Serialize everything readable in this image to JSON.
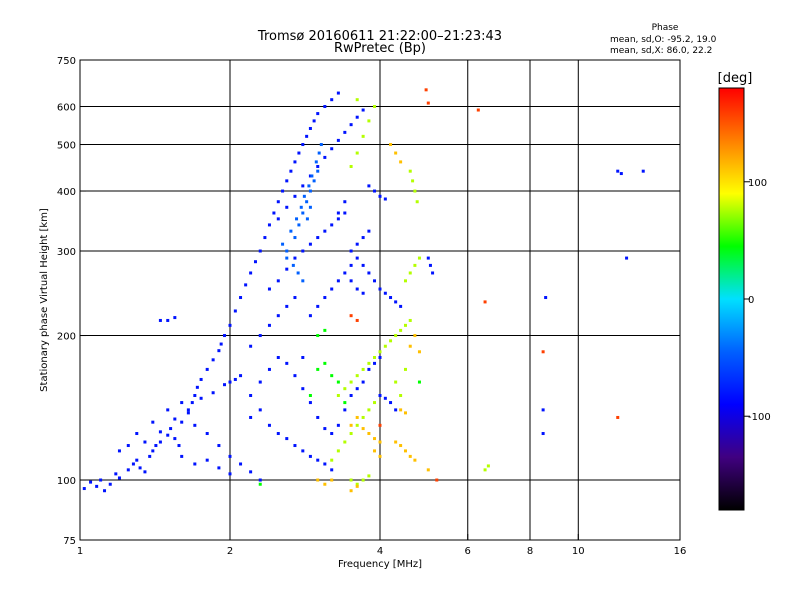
{
  "chart_data": {
    "type": "scatter",
    "title": "Tromsø 20160611 21:22:00–21:23:43",
    "subtitle": "RwPretec (Bp)",
    "xlabel": "Frequency [MHz]",
    "ylabel": "Stationary phase Virtual Height [km]",
    "x_scale": "log",
    "y_scale": "log",
    "xlim": [
      1,
      16
    ],
    "ylim": [
      75,
      750
    ],
    "x_ticks": [
      1,
      2,
      4,
      6,
      8,
      10,
      16
    ],
    "y_ticks": [
      75,
      100,
      200,
      300,
      400,
      500,
      600,
      750
    ],
    "x_gridlines": [
      2,
      4,
      6,
      8,
      10
    ],
    "y_gridlines": [
      100,
      200,
      300,
      400,
      500,
      600
    ],
    "stats": {
      "heading": "Phase",
      "line_o": "mean, sd,O: -95.2, 19.0",
      "line_x": "mean, sd,X:  86.0, 22.2"
    },
    "colorbar": {
      "label": "[deg]",
      "range": [
        -180,
        180
      ],
      "ticks": [
        100,
        0,
        -100
      ],
      "colors": [
        "#ff0000",
        "#ff8000",
        "#ffff00",
        "#00ff00",
        "#00e0ff",
        "#0060ff",
        "#0000ff",
        "#400080",
        "#000000"
      ]
    },
    "series": [
      {
        "phase": -100,
        "points": [
          [
            1.02,
            96
          ],
          [
            1.05,
            99
          ],
          [
            1.08,
            97
          ],
          [
            1.1,
            100
          ],
          [
            1.12,
            95
          ],
          [
            1.15,
            98
          ],
          [
            1.18,
            103
          ],
          [
            1.2,
            101
          ],
          [
            1.25,
            105
          ],
          [
            1.28,
            108
          ],
          [
            1.3,
            110
          ],
          [
            1.32,
            106
          ],
          [
            1.35,
            104
          ],
          [
            1.38,
            112
          ],
          [
            1.4,
            115
          ],
          [
            1.42,
            118
          ],
          [
            1.45,
            120
          ],
          [
            1.5,
            124
          ],
          [
            1.52,
            128
          ],
          [
            1.55,
            122
          ],
          [
            1.58,
            118
          ],
          [
            1.6,
            132
          ],
          [
            1.65,
            138
          ],
          [
            1.68,
            145
          ],
          [
            1.7,
            150
          ],
          [
            1.72,
            156
          ],
          [
            1.75,
            162
          ],
          [
            1.8,
            170
          ],
          [
            1.85,
            178
          ],
          [
            1.9,
            186
          ],
          [
            1.92,
            192
          ],
          [
            1.95,
            200
          ],
          [
            2.0,
            210
          ],
          [
            2.05,
            225
          ],
          [
            2.1,
            240
          ],
          [
            2.15,
            255
          ],
          [
            2.2,
            270
          ],
          [
            2.25,
            285
          ],
          [
            2.3,
            300
          ],
          [
            2.35,
            320
          ],
          [
            2.4,
            340
          ],
          [
            2.45,
            360
          ],
          [
            2.5,
            380
          ],
          [
            2.55,
            400
          ],
          [
            2.6,
            420
          ],
          [
            2.65,
            440
          ],
          [
            2.7,
            460
          ],
          [
            2.75,
            480
          ],
          [
            2.8,
            500
          ],
          [
            2.85,
            520
          ],
          [
            2.9,
            540
          ],
          [
            2.95,
            560
          ],
          [
            3.0,
            580
          ],
          [
            3.1,
            600
          ],
          [
            3.2,
            620
          ],
          [
            3.3,
            640
          ],
          [
            1.3,
            125
          ],
          [
            1.4,
            132
          ],
          [
            1.5,
            140
          ],
          [
            1.6,
            145
          ],
          [
            1.7,
            130
          ],
          [
            1.8,
            125
          ],
          [
            1.9,
            118
          ],
          [
            2.0,
            112
          ],
          [
            2.1,
            108
          ],
          [
            2.2,
            104
          ],
          [
            2.3,
            100
          ],
          [
            1.6,
            112
          ],
          [
            1.7,
            108
          ],
          [
            1.8,
            110
          ],
          [
            1.9,
            106
          ],
          [
            2.0,
            103
          ],
          [
            2.2,
            150
          ],
          [
            2.3,
            160
          ],
          [
            2.4,
            170
          ],
          [
            2.5,
            180
          ],
          [
            2.6,
            175
          ],
          [
            2.7,
            165
          ],
          [
            2.8,
            155
          ],
          [
            2.9,
            145
          ],
          [
            3.0,
            135
          ],
          [
            3.1,
            128
          ],
          [
            3.2,
            125
          ],
          [
            3.3,
            130
          ],
          [
            3.4,
            140
          ],
          [
            3.5,
            150
          ],
          [
            3.6,
            155
          ],
          [
            3.7,
            160
          ],
          [
            3.8,
            170
          ],
          [
            3.9,
            175
          ],
          [
            4.0,
            180
          ],
          [
            2.4,
            250
          ],
          [
            2.5,
            260
          ],
          [
            2.6,
            275
          ],
          [
            2.7,
            290
          ],
          [
            2.8,
            300
          ],
          [
            2.9,
            310
          ],
          [
            3.0,
            320
          ],
          [
            3.1,
            330
          ],
          [
            3.2,
            340
          ],
          [
            3.3,
            350
          ],
          [
            3.4,
            360
          ],
          [
            3.5,
            300
          ],
          [
            3.6,
            290
          ],
          [
            3.7,
            280
          ],
          [
            3.8,
            270
          ],
          [
            3.9,
            260
          ],
          [
            4.0,
            250
          ],
          [
            4.1,
            245
          ],
          [
            4.2,
            240
          ],
          [
            4.3,
            235
          ],
          [
            4.4,
            230
          ],
          [
            2.5,
            350
          ],
          [
            2.6,
            370
          ],
          [
            2.7,
            390
          ],
          [
            2.8,
            410
          ],
          [
            2.9,
            430
          ],
          [
            3.0,
            450
          ],
          [
            3.1,
            470
          ],
          [
            3.2,
            490
          ],
          [
            3.3,
            510
          ],
          [
            3.4,
            530
          ],
          [
            3.5,
            550
          ],
          [
            3.6,
            570
          ],
          [
            3.7,
            590
          ],
          [
            3.8,
            410
          ],
          [
            3.9,
            400
          ],
          [
            4.0,
            390
          ],
          [
            4.1,
            385
          ],
          [
            2.2,
            190
          ],
          [
            2.3,
            200
          ],
          [
            2.4,
            210
          ],
          [
            2.5,
            220
          ],
          [
            2.6,
            230
          ],
          [
            2.7,
            240
          ],
          [
            2.8,
            180
          ],
          [
            1.45,
            215
          ],
          [
            1.5,
            215
          ],
          [
            1.55,
            218
          ],
          [
            3.3,
            360
          ],
          [
            3.4,
            380
          ],
          [
            3.5,
            260
          ],
          [
            3.6,
            250
          ],
          [
            3.7,
            245
          ],
          [
            4.0,
            150
          ],
          [
            4.1,
            148
          ],
          [
            4.2,
            145
          ],
          [
            4.3,
            140
          ],
          [
            5.0,
            290
          ],
          [
            5.05,
            280
          ],
          [
            5.1,
            270
          ],
          [
            8.5,
            140
          ],
          [
            8.5,
            125
          ],
          [
            8.6,
            240
          ],
          [
            12.0,
            440
          ],
          [
            12.2,
            435
          ],
          [
            13.5,
            440
          ],
          [
            12.5,
            290
          ],
          [
            2.9,
            220
          ],
          [
            3.0,
            230
          ],
          [
            3.1,
            240
          ],
          [
            3.2,
            250
          ],
          [
            3.3,
            260
          ],
          [
            3.4,
            270
          ],
          [
            3.5,
            280
          ],
          [
            3.6,
            310
          ],
          [
            3.7,
            320
          ],
          [
            3.8,
            330
          ],
          [
            2.0,
            160
          ],
          [
            2.1,
            165
          ],
          [
            2.2,
            135
          ],
          [
            2.3,
            140
          ],
          [
            2.4,
            130
          ],
          [
            2.5,
            125
          ],
          [
            2.6,
            122
          ],
          [
            2.7,
            118
          ],
          [
            2.8,
            115
          ],
          [
            2.9,
            112
          ],
          [
            3.0,
            110
          ],
          [
            3.1,
            108
          ],
          [
            3.2,
            105
          ],
          [
            1.2,
            115
          ],
          [
            1.25,
            118
          ],
          [
            1.35,
            120
          ],
          [
            1.45,
            126
          ],
          [
            1.55,
            134
          ],
          [
            1.65,
            140
          ],
          [
            1.75,
            148
          ],
          [
            1.85,
            152
          ],
          [
            1.95,
            158
          ],
          [
            2.05,
            162
          ]
        ]
      },
      {
        "phase": -60,
        "points": [
          [
            2.6,
            300
          ],
          [
            2.7,
            320
          ],
          [
            2.75,
            340
          ],
          [
            2.8,
            360
          ],
          [
            2.85,
            380
          ],
          [
            2.9,
            400
          ],
          [
            2.95,
            420
          ],
          [
            3.0,
            440
          ],
          [
            2.65,
            330
          ],
          [
            2.72,
            350
          ],
          [
            2.78,
            370
          ],
          [
            2.82,
            390
          ],
          [
            2.88,
            410
          ],
          [
            2.92,
            430
          ],
          [
            2.98,
            460
          ],
          [
            3.02,
            480
          ],
          [
            3.05,
            500
          ],
          [
            2.55,
            310
          ],
          [
            2.6,
            290
          ],
          [
            2.68,
            280
          ],
          [
            2.74,
            270
          ],
          [
            2.8,
            260
          ],
          [
            2.86,
            350
          ],
          [
            2.9,
            370
          ]
        ]
      },
      {
        "phase": 60,
        "points": [
          [
            3.2,
            110
          ],
          [
            3.3,
            115
          ],
          [
            3.4,
            120
          ],
          [
            3.5,
            125
          ],
          [
            3.6,
            130
          ],
          [
            3.7,
            135
          ],
          [
            3.8,
            140
          ],
          [
            3.9,
            145
          ],
          [
            3.3,
            150
          ],
          [
            3.4,
            155
          ],
          [
            3.5,
            160
          ],
          [
            3.6,
            165
          ],
          [
            3.7,
            170
          ],
          [
            3.8,
            175
          ],
          [
            3.9,
            180
          ],
          [
            4.0,
            185
          ],
          [
            4.1,
            190
          ],
          [
            4.2,
            195
          ],
          [
            4.3,
            200
          ],
          [
            4.4,
            205
          ],
          [
            4.5,
            210
          ],
          [
            4.6,
            215
          ],
          [
            3.5,
            100
          ],
          [
            3.6,
            98
          ],
          [
            3.7,
            100
          ],
          [
            3.8,
            102
          ],
          [
            4.6,
            440
          ],
          [
            4.65,
            420
          ],
          [
            4.7,
            400
          ],
          [
            4.75,
            380
          ],
          [
            4.5,
            260
          ],
          [
            4.6,
            270
          ],
          [
            4.7,
            280
          ],
          [
            4.8,
            290
          ],
          [
            6.5,
            105
          ],
          [
            6.6,
            107
          ],
          [
            4.3,
            160
          ],
          [
            4.4,
            150
          ],
          [
            4.5,
            170
          ],
          [
            3.5,
            450
          ],
          [
            3.6,
            480
          ],
          [
            3.7,
            520
          ],
          [
            3.8,
            560
          ],
          [
            3.9,
            600
          ],
          [
            3.6,
            620
          ]
        ]
      },
      {
        "phase": 120,
        "points": [
          [
            3.5,
            130
          ],
          [
            3.6,
            135
          ],
          [
            3.7,
            128
          ],
          [
            3.8,
            125
          ],
          [
            3.9,
            122
          ],
          [
            4.0,
            120
          ],
          [
            4.3,
            120
          ],
          [
            4.4,
            118
          ],
          [
            4.5,
            115
          ],
          [
            4.6,
            112
          ],
          [
            4.7,
            110
          ],
          [
            5.0,
            105
          ],
          [
            3.9,
            115
          ],
          [
            4.0,
            112
          ],
          [
            4.6,
            190
          ],
          [
            4.7,
            200
          ],
          [
            4.8,
            185
          ],
          [
            3.5,
            95
          ],
          [
            3.6,
            97
          ],
          [
            3.0,
            100
          ],
          [
            3.1,
            98
          ],
          [
            3.2,
            100
          ],
          [
            4.4,
            140
          ],
          [
            4.5,
            138
          ],
          [
            4.2,
            500
          ],
          [
            4.3,
            480
          ],
          [
            4.4,
            460
          ]
        ]
      },
      {
        "phase": 160,
        "points": [
          [
            4.95,
            650
          ],
          [
            5.0,
            610
          ],
          [
            6.3,
            590
          ],
          [
            5.2,
            100
          ],
          [
            6.5,
            235
          ],
          [
            8.5,
            185
          ],
          [
            12.0,
            135
          ],
          [
            4.0,
            130
          ],
          [
            3.5,
            220
          ],
          [
            3.6,
            215
          ]
        ]
      },
      {
        "phase": 10,
        "points": [
          [
            3.0,
            170
          ],
          [
            3.1,
            175
          ],
          [
            3.2,
            165
          ],
          [
            3.3,
            160
          ],
          [
            2.9,
            150
          ],
          [
            3.4,
            145
          ],
          [
            2.3,
            98
          ],
          [
            4.8,
            160
          ],
          [
            3.0,
            200
          ],
          [
            3.1,
            205
          ]
        ]
      }
    ]
  }
}
